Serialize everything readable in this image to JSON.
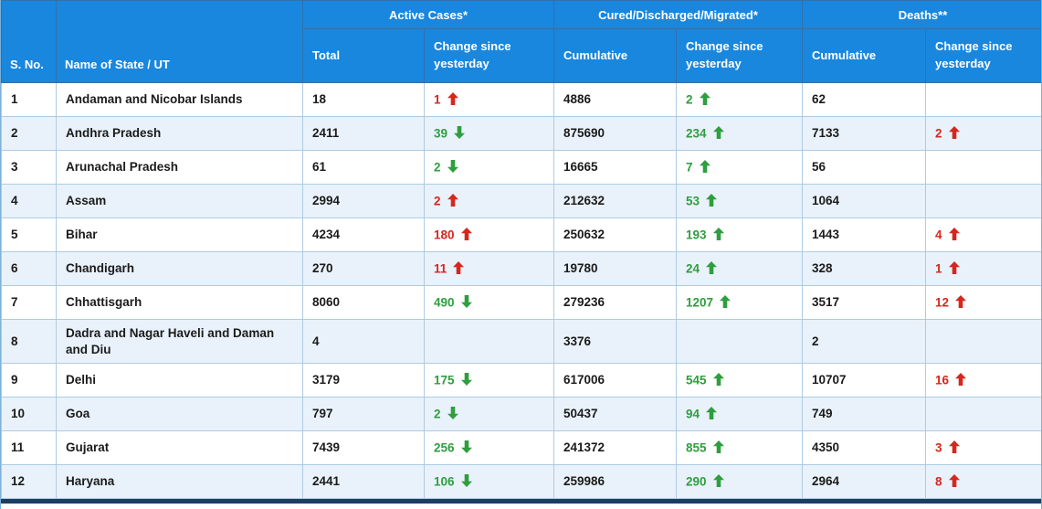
{
  "table": {
    "group_headers": [
      {
        "label": "Active Cases*"
      },
      {
        "label": "Cured/Discharged/Migrated*"
      },
      {
        "label": "Deaths**"
      }
    ],
    "columns": {
      "sno": "S. No.",
      "state": "Name of State / UT",
      "active_total": "Total",
      "active_change": "Change since yesterday",
      "cured_cumulative": "Cumulative",
      "cured_change": "Change since yesterday",
      "deaths_cumulative": "Cumulative",
      "deaths_change": "Change since yesterday"
    },
    "colors": {
      "header_bg": "#1987de",
      "header_border": "#3071ad",
      "row_alt_bg": "#e9f2fa",
      "cell_border": "#aecbe4",
      "text": "#1b1b1b",
      "increase_red": "#d7261d",
      "decrease_green": "#2f9e3f",
      "bottom_strip": "#1c3e63"
    },
    "rows": [
      {
        "sno": "1",
        "state": "Andaman and Nicobar Islands",
        "active_total": "18",
        "active_change": {
          "value": "1",
          "dir": "up",
          "tone": "red"
        },
        "cured_cumulative": "4886",
        "cured_change": {
          "value": "2",
          "dir": "up",
          "tone": "green"
        },
        "deaths_cumulative": "62",
        "deaths_change": null
      },
      {
        "sno": "2",
        "state": "Andhra Pradesh",
        "active_total": "2411",
        "active_change": {
          "value": "39",
          "dir": "down",
          "tone": "green"
        },
        "cured_cumulative": "875690",
        "cured_change": {
          "value": "234",
          "dir": "up",
          "tone": "green"
        },
        "deaths_cumulative": "7133",
        "deaths_change": {
          "value": "2",
          "dir": "up",
          "tone": "red"
        }
      },
      {
        "sno": "3",
        "state": "Arunachal Pradesh",
        "active_total": "61",
        "active_change": {
          "value": "2",
          "dir": "down",
          "tone": "green"
        },
        "cured_cumulative": "16665",
        "cured_change": {
          "value": "7",
          "dir": "up",
          "tone": "green"
        },
        "deaths_cumulative": "56",
        "deaths_change": null
      },
      {
        "sno": "4",
        "state": "Assam",
        "active_total": "2994",
        "active_change": {
          "value": "2",
          "dir": "up",
          "tone": "red"
        },
        "cured_cumulative": "212632",
        "cured_change": {
          "value": "53",
          "dir": "up",
          "tone": "green"
        },
        "deaths_cumulative": "1064",
        "deaths_change": null
      },
      {
        "sno": "5",
        "state": "Bihar",
        "active_total": "4234",
        "active_change": {
          "value": "180",
          "dir": "up",
          "tone": "red"
        },
        "cured_cumulative": "250632",
        "cured_change": {
          "value": "193",
          "dir": "up",
          "tone": "green"
        },
        "deaths_cumulative": "1443",
        "deaths_change": {
          "value": "4",
          "dir": "up",
          "tone": "red"
        }
      },
      {
        "sno": "6",
        "state": "Chandigarh",
        "active_total": "270",
        "active_change": {
          "value": "11",
          "dir": "up",
          "tone": "red"
        },
        "cured_cumulative": "19780",
        "cured_change": {
          "value": "24",
          "dir": "up",
          "tone": "green"
        },
        "deaths_cumulative": "328",
        "deaths_change": {
          "value": "1",
          "dir": "up",
          "tone": "red"
        }
      },
      {
        "sno": "7",
        "state": "Chhattisgarh",
        "active_total": "8060",
        "active_change": {
          "value": "490",
          "dir": "down",
          "tone": "green"
        },
        "cured_cumulative": "279236",
        "cured_change": {
          "value": "1207",
          "dir": "up",
          "tone": "green"
        },
        "deaths_cumulative": "3517",
        "deaths_change": {
          "value": "12",
          "dir": "up",
          "tone": "red"
        }
      },
      {
        "sno": "8",
        "state": "Dadra and Nagar Haveli and Daman and Diu",
        "active_total": "4",
        "active_change": null,
        "cured_cumulative": "3376",
        "cured_change": null,
        "deaths_cumulative": "2",
        "deaths_change": null
      },
      {
        "sno": "9",
        "state": "Delhi",
        "active_total": "3179",
        "active_change": {
          "value": "175",
          "dir": "down",
          "tone": "green"
        },
        "cured_cumulative": "617006",
        "cured_change": {
          "value": "545",
          "dir": "up",
          "tone": "green"
        },
        "deaths_cumulative": "10707",
        "deaths_change": {
          "value": "16",
          "dir": "up",
          "tone": "red"
        }
      },
      {
        "sno": "10",
        "state": "Goa",
        "active_total": "797",
        "active_change": {
          "value": "2",
          "dir": "down",
          "tone": "green"
        },
        "cured_cumulative": "50437",
        "cured_change": {
          "value": "94",
          "dir": "up",
          "tone": "green"
        },
        "deaths_cumulative": "749",
        "deaths_change": null
      },
      {
        "sno": "11",
        "state": "Gujarat",
        "active_total": "7439",
        "active_change": {
          "value": "256",
          "dir": "down",
          "tone": "green"
        },
        "cured_cumulative": "241372",
        "cured_change": {
          "value": "855",
          "dir": "up",
          "tone": "green"
        },
        "deaths_cumulative": "4350",
        "deaths_change": {
          "value": "3",
          "dir": "up",
          "tone": "red"
        }
      },
      {
        "sno": "12",
        "state": "Haryana",
        "active_total": "2441",
        "active_change": {
          "value": "106",
          "dir": "down",
          "tone": "green"
        },
        "cured_cumulative": "259986",
        "cured_change": {
          "value": "290",
          "dir": "up",
          "tone": "green"
        },
        "deaths_cumulative": "2964",
        "deaths_change": {
          "value": "8",
          "dir": "up",
          "tone": "red"
        }
      }
    ]
  }
}
